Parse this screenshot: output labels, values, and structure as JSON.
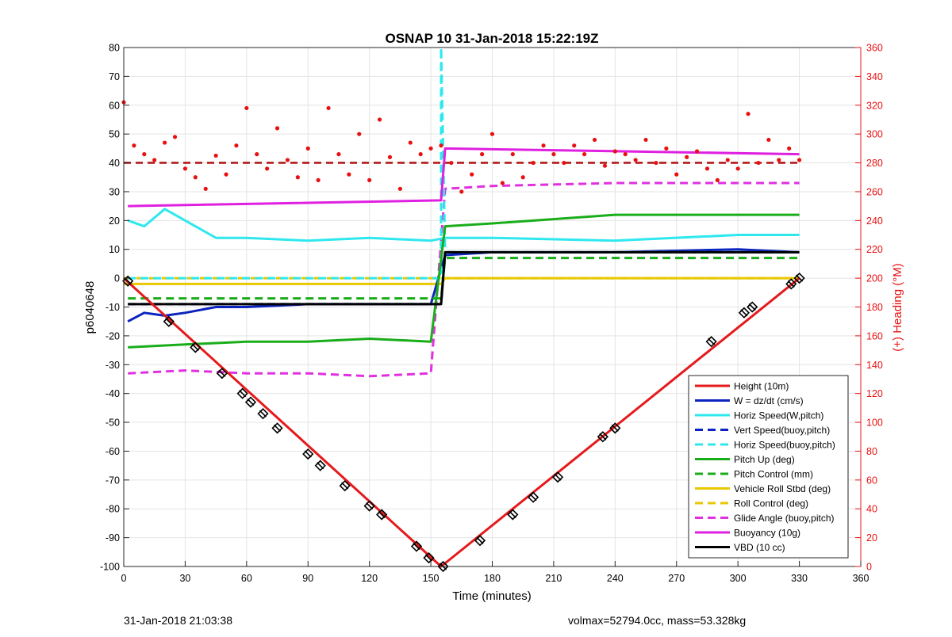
{
  "chart_data": {
    "type": "line",
    "title": "OSNAP 10 31-Jan-2018 15:22:19Z",
    "xlabel": "Time (minutes)",
    "ylabel": "p6040648",
    "y2label": "(+) Heading (°M)",
    "xlim": [
      0,
      360
    ],
    "ylim": [
      -100,
      80
    ],
    "y2lim": [
      0,
      360
    ],
    "xticks": [
      0,
      30,
      60,
      90,
      120,
      150,
      180,
      210,
      240,
      270,
      300,
      330,
      360
    ],
    "yticks": [
      -100,
      -90,
      -80,
      -70,
      -60,
      -50,
      -40,
      -30,
      -20,
      -10,
      0,
      10,
      20,
      30,
      40,
      50,
      60,
      70,
      80
    ],
    "y2ticks": [
      0,
      20,
      40,
      60,
      80,
      100,
      120,
      140,
      160,
      180,
      200,
      220,
      240,
      260,
      280,
      300,
      320,
      340,
      360
    ],
    "grid": true,
    "legend_position": "bottom-right",
    "colors": {
      "height": "#e41a1c",
      "w": "#0b24c0",
      "horiz_speed": "#2ee8ee",
      "pitch": "#1aad1a",
      "roll": "#e8c800",
      "glide": "#e030e0",
      "buoyancy": "#e020e0",
      "vbd": "#000000",
      "heading": "#e81010"
    },
    "series": [
      {
        "name": "Height (10m)",
        "style": "solid",
        "color": "#e41a1c",
        "x": [
          0,
          155,
          330
        ],
        "y": [
          0,
          -100,
          0
        ]
      },
      {
        "name": "W = dz/dt (cm/s)",
        "style": "solid",
        "color": "#0b24c0",
        "x": [
          2,
          10,
          20,
          30,
          45,
          60,
          90,
          120,
          150,
          157,
          180,
          240,
          300,
          330
        ],
        "y": [
          -15,
          -12,
          -13,
          -12,
          -10,
          -10,
          -9,
          -9,
          -9,
          8,
          9,
          9,
          10,
          9
        ]
      },
      {
        "name": "Horiz Speed(W,pitch)",
        "style": "solid",
        "color": "#2ee8ee",
        "x": [
          2,
          10,
          20,
          30,
          45,
          60,
          90,
          120,
          150,
          157,
          180,
          240,
          300,
          330
        ],
        "y": [
          20,
          18,
          24,
          20,
          14,
          14,
          13,
          14,
          13,
          14,
          14,
          13,
          15,
          15
        ]
      },
      {
        "name": "Vert Speed(buoy,pitch)",
        "style": "dashed",
        "color": "#0b24c0",
        "x": [
          2,
          155,
          157,
          330
        ],
        "y": [
          -9,
          -9,
          9,
          9
        ]
      },
      {
        "name": "Horiz Speed(buoy,pitch)",
        "style": "dashed",
        "color": "#2ee8ee",
        "x": [
          2,
          155,
          155,
          157,
          330
        ],
        "y": [
          0,
          0,
          80,
          9,
          9
        ]
      },
      {
        "name": "Pitch Up (deg)",
        "style": "solid",
        "color": "#1aad1a",
        "x": [
          2,
          30,
          60,
          90,
          120,
          150,
          157,
          180,
          240,
          300,
          330
        ],
        "y": [
          -24,
          -23,
          -22,
          -22,
          -21,
          -22,
          18,
          19,
          22,
          22,
          22
        ]
      },
      {
        "name": "Pitch Control (mm)",
        "style": "dashed",
        "color": "#1aad1a",
        "x": [
          2,
          155,
          157,
          330
        ],
        "y": [
          -7,
          -7,
          7,
          7
        ]
      },
      {
        "name": "Vehicle Roll Stbd (deg)",
        "style": "solid",
        "color": "#e8c800",
        "x": [
          0,
          155,
          157,
          330
        ],
        "y": [
          -2,
          -2,
          0,
          0
        ]
      },
      {
        "name": "Roll Control (deg)",
        "style": "dashed",
        "color": "#e8c800",
        "x": [
          0,
          330
        ],
        "y": [
          0,
          0
        ]
      },
      {
        "name": "Glide Angle (buoy,pitch)",
        "style": "dashed",
        "color": "#e030e0",
        "x": [
          2,
          30,
          60,
          90,
          120,
          150,
          157,
          180,
          240,
          300,
          330
        ],
        "y": [
          -33,
          -32,
          -33,
          -33,
          -34,
          -33,
          31,
          32,
          33,
          33,
          33
        ]
      },
      {
        "name": "Buoyancy (10g)",
        "style": "solid",
        "color": "#e020e0",
        "x": [
          2,
          155,
          157,
          330
        ],
        "y": [
          25,
          27,
          45,
          43
        ]
      },
      {
        "name": "VBD (10 cc)",
        "style": "solid",
        "color": "#000000",
        "x": [
          2,
          155,
          157,
          330
        ],
        "y": [
          -9,
          -9,
          9,
          9
        ]
      }
    ],
    "heading_reference": {
      "y2": 280,
      "style": "dashed",
      "color": "#b01010"
    },
    "heading_points": {
      "x": [
        0,
        5,
        10,
        15,
        20,
        25,
        30,
        35,
        40,
        45,
        50,
        55,
        60,
        65,
        70,
        75,
        80,
        85,
        90,
        95,
        100,
        105,
        110,
        115,
        120,
        125,
        130,
        135,
        140,
        145,
        150,
        155,
        160,
        165,
        170,
        175,
        180,
        185,
        190,
        195,
        200,
        205,
        210,
        215,
        220,
        225,
        230,
        235,
        240,
        245,
        250,
        255,
        260,
        265,
        270,
        275,
        280,
        285,
        290,
        295,
        300,
        305,
        310,
        315,
        320,
        325,
        330
      ],
      "y2": [
        322,
        292,
        286,
        282,
        294,
        298,
        276,
        270,
        262,
        285,
        272,
        292,
        318,
        286,
        276,
        304,
        282,
        270,
        290,
        268,
        318,
        286,
        272,
        300,
        268,
        310,
        284,
        262,
        294,
        286,
        290,
        292,
        280,
        260,
        272,
        286,
        300,
        266,
        286,
        270,
        280,
        292,
        286,
        280,
        292,
        286,
        296,
        278,
        288,
        286,
        282,
        296,
        280,
        290,
        272,
        284,
        288,
        276,
        268,
        282,
        276,
        314,
        280,
        296,
        282,
        290,
        282
      ]
    },
    "markers": {
      "x": [
        2,
        22,
        35,
        48,
        58,
        62,
        68,
        75,
        90,
        96,
        108,
        120,
        126,
        143,
        149,
        156,
        174,
        190,
        200,
        212,
        234,
        240,
        287,
        303,
        307,
        326,
        330
      ],
      "y": [
        -1,
        -15,
        -24,
        -33,
        -40,
        -43,
        -47,
        -52,
        -61,
        -65,
        -72,
        -79,
        -82,
        -93,
        -97,
        -100,
        -91,
        -82,
        -76,
        -69,
        -55,
        -52,
        -22,
        -12,
        -10,
        -2,
        0
      ]
    }
  },
  "footer": {
    "left": "31-Jan-2018 21:03:38",
    "right": "volmax=52794.0cc, mass=53.328kg"
  }
}
